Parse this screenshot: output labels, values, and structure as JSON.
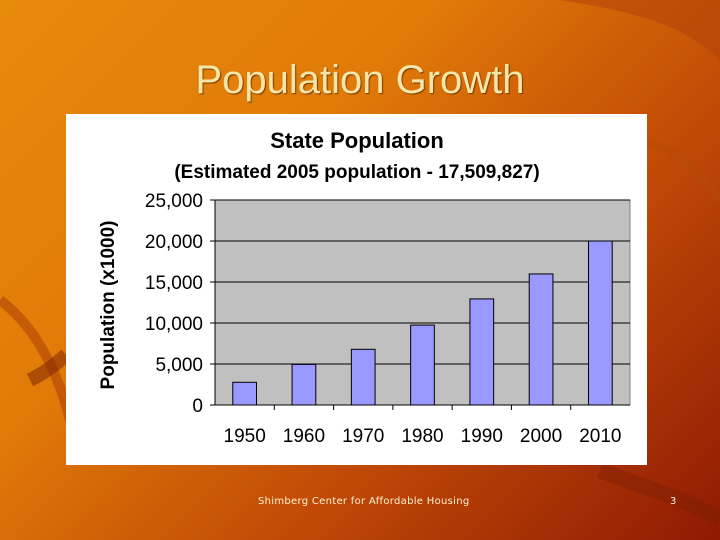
{
  "slide": {
    "title": "Population Growth",
    "footer": "Shimberg Center for Affordable Housing",
    "page_number": "3"
  },
  "colors": {
    "bar_fill": "#9999ff",
    "plot_bg": "#c0c0c0",
    "title_color": "#f4e6a6"
  },
  "chart_data": {
    "type": "bar",
    "title": "State Population",
    "subtitle": "(Estimated 2005 population - 17,509,827)",
    "ylabel": "Population (x1000)",
    "xlabel": "",
    "categories": [
      "1950",
      "1960",
      "1970",
      "1980",
      "1990",
      "2000",
      "2010"
    ],
    "values": [
      2771,
      4952,
      6789,
      9747,
      12938,
      15982,
      20000
    ],
    "ylim": [
      0,
      25000
    ],
    "yticks": [
      0,
      5000,
      10000,
      15000,
      20000,
      25000
    ],
    "ytick_labels": [
      "0",
      "5,000",
      "10,000",
      "15,000",
      "20,000",
      "25,000"
    ],
    "grid": true,
    "legend": "none"
  }
}
